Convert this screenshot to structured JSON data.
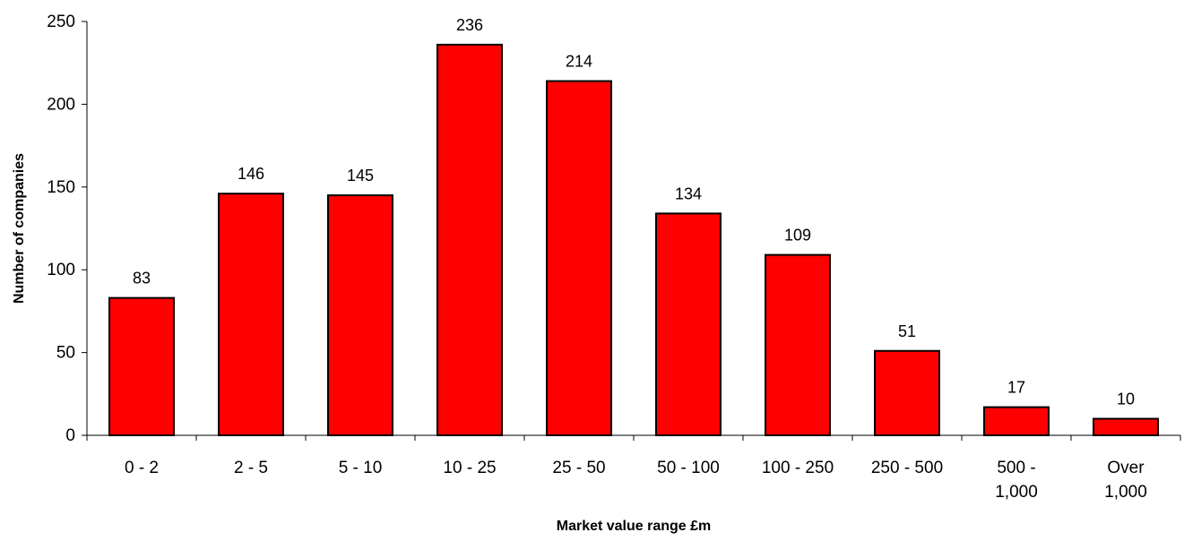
{
  "chart_data": {
    "type": "bar",
    "title": "",
    "xlabel": "Market value range £m",
    "ylabel": "Number of companies",
    "categories": [
      [
        "0 - 2"
      ],
      [
        "2 - 5"
      ],
      [
        "5 - 10"
      ],
      [
        "10 - 25"
      ],
      [
        "25 - 50"
      ],
      [
        "50 - 100"
      ],
      [
        "100 - 250"
      ],
      [
        "250 - 500"
      ],
      [
        "500 -",
        "1,000"
      ],
      [
        "Over",
        "1,000"
      ]
    ],
    "values": [
      83,
      146,
      145,
      236,
      214,
      134,
      109,
      51,
      17,
      10
    ],
    "ylim": [
      0,
      250
    ],
    "yticks": [
      "0",
      "50",
      "100",
      "150",
      "200",
      "250"
    ],
    "bar_color": "#ff0000",
    "bar_outline": "#000000",
    "grid": false,
    "legend": "none"
  }
}
